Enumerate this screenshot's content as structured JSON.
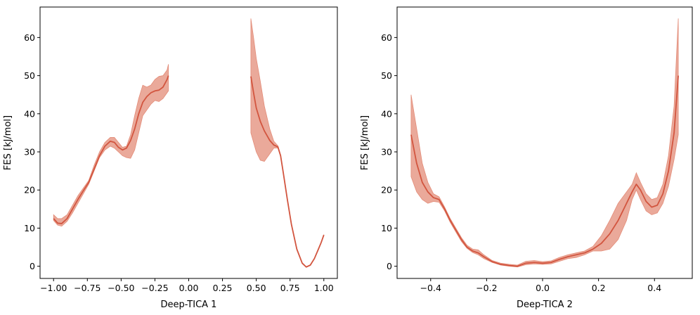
{
  "colors": {
    "line": "#d2553f",
    "band": "#e38c78"
  },
  "chart_data": [
    {
      "type": "line",
      "xlabel": "Deep-TICA 1",
      "ylabel": "FES [kJ/mol]",
      "xlim": [
        -1.1,
        1.1
      ],
      "ylim": [
        -3.2,
        68
      ],
      "xticks": [
        -1.0,
        -0.75,
        -0.5,
        -0.25,
        0.0,
        0.25,
        0.5,
        0.75,
        1.0
      ],
      "xtick_labels": [
        "−1.00",
        "−0.75",
        "−0.50",
        "−0.25",
        "0.00",
        "0.25",
        "0.50",
        "0.75",
        "1.00"
      ],
      "yticks": [
        0,
        10,
        20,
        30,
        40,
        50,
        60
      ],
      "ytick_labels": [
        "0",
        "10",
        "20",
        "30",
        "40",
        "50",
        "60"
      ],
      "grid": false,
      "segments": [
        {
          "x": [
            -1.0,
            -0.97,
            -0.94,
            -0.9,
            -0.86,
            -0.82,
            -0.78,
            -0.74,
            -0.7,
            -0.66,
            -0.62,
            -0.58,
            -0.55,
            -0.52,
            -0.49,
            -0.46,
            -0.43,
            -0.4,
            -0.37,
            -0.34,
            -0.31,
            -0.28,
            -0.25,
            -0.22,
            -0.19,
            -0.16,
            -0.15
          ],
          "y": [
            12.5,
            11.3,
            11.2,
            12.5,
            15.0,
            17.5,
            19.8,
            22.0,
            25.5,
            29.0,
            31.5,
            32.8,
            32.5,
            31.2,
            30.5,
            31.0,
            33.0,
            36.0,
            40.0,
            43.0,
            44.5,
            45.5,
            46.0,
            46.2,
            47.0,
            49.0,
            50.0
          ],
          "lower": [
            12.0,
            10.8,
            10.5,
            11.8,
            14.0,
            16.5,
            19.0,
            21.5,
            25.0,
            28.5,
            30.5,
            31.5,
            31.0,
            30.0,
            29.0,
            28.5,
            28.3,
            30.5,
            35.0,
            39.5,
            41.0,
            42.5,
            43.5,
            43.2,
            44.0,
            45.5,
            46.0
          ],
          "upper": [
            13.5,
            12.5,
            12.5,
            13.5,
            16.0,
            18.5,
            20.5,
            22.5,
            26.5,
            30.0,
            32.5,
            33.8,
            33.8,
            32.5,
            31.2,
            31.5,
            34.5,
            39.5,
            44.0,
            47.5,
            47.0,
            47.5,
            49.0,
            49.8,
            50.0,
            51.5,
            53.0
          ]
        },
        {
          "x": [
            0.46,
            0.48,
            0.5,
            0.53,
            0.56,
            0.6,
            0.63,
            0.66,
            0.68,
            0.7,
            0.73,
            0.76,
            0.8,
            0.84,
            0.87,
            0.9,
            0.93,
            0.96,
            0.98,
            1.0
          ],
          "y": [
            49.8,
            45.5,
            41.5,
            38.0,
            35.5,
            33.0,
            31.8,
            31.3,
            29.0,
            24.5,
            17.5,
            11.0,
            4.5,
            0.8,
            -0.2,
            0.3,
            2.0,
            4.5,
            6.2,
            8.2
          ],
          "lower": [
            35.0,
            32.5,
            30.0,
            27.8,
            27.5,
            29.5,
            31.0,
            31.0,
            28.8,
            24.3,
            17.3,
            10.8,
            4.3,
            0.7,
            -0.3,
            0.2,
            1.9,
            4.4,
            6.1,
            8.1
          ],
          "upper": [
            65.0,
            60.0,
            54.5,
            48.5,
            42.0,
            36.0,
            32.8,
            31.6,
            29.2,
            24.7,
            17.7,
            11.2,
            4.7,
            0.9,
            -0.1,
            0.4,
            2.1,
            4.6,
            6.3,
            8.3
          ]
        }
      ]
    },
    {
      "type": "line",
      "xlabel": "Deep-TICA 2",
      "ylabel": "FES [kJ/mol]",
      "xlim": [
        -0.52,
        0.535
      ],
      "ylim": [
        -3.2,
        68
      ],
      "xticks": [
        -0.4,
        -0.2,
        0.0,
        0.2,
        0.4
      ],
      "xtick_labels": [
        "−0.4",
        "−0.2",
        "0.0",
        "0.2",
        "0.4"
      ],
      "yticks": [
        0,
        10,
        20,
        30,
        40,
        50,
        60
      ],
      "ytick_labels": [
        "0",
        "10",
        "20",
        "30",
        "40",
        "50",
        "60"
      ],
      "grid": false,
      "segments": [
        {
          "x": [
            -0.47,
            -0.45,
            -0.43,
            -0.41,
            -0.39,
            -0.37,
            -0.35,
            -0.33,
            -0.31,
            -0.29,
            -0.27,
            -0.25,
            -0.23,
            -0.21,
            -0.18,
            -0.15,
            -0.12,
            -0.09,
            -0.06,
            -0.03,
            0.0,
            0.03,
            0.06,
            0.09,
            0.12,
            0.15,
            0.18,
            0.21,
            0.24,
            0.27,
            0.3,
            0.32,
            0.335,
            0.35,
            0.37,
            0.39,
            0.41,
            0.43,
            0.45,
            0.47,
            0.485
          ],
          "y": [
            34.5,
            27.0,
            22.0,
            19.5,
            18.0,
            17.5,
            15.0,
            12.0,
            9.5,
            7.0,
            5.0,
            4.0,
            3.5,
            2.5,
            1.2,
            0.5,
            0.2,
            0.0,
            0.8,
            1.0,
            0.8,
            1.0,
            1.8,
            2.5,
            3.0,
            3.5,
            4.5,
            6.0,
            8.5,
            12.0,
            16.5,
            19.5,
            21.5,
            20.0,
            17.0,
            15.5,
            16.0,
            19.0,
            25.0,
            35.0,
            50.0
          ],
          "lower": [
            23.5,
            19.5,
            17.5,
            16.5,
            17.0,
            16.8,
            14.5,
            11.5,
            9.0,
            6.5,
            4.7,
            3.6,
            3.0,
            2.0,
            1.0,
            0.3,
            0.0,
            -0.2,
            0.4,
            0.6,
            0.5,
            0.6,
            1.3,
            2.0,
            2.3,
            3.0,
            4.0,
            4.0,
            4.5,
            7.0,
            12.0,
            17.5,
            20.0,
            17.5,
            14.5,
            13.5,
            14.0,
            16.5,
            21.0,
            28.0,
            34.5
          ],
          "upper": [
            45.0,
            36.0,
            27.0,
            22.0,
            19.0,
            18.2,
            15.5,
            12.5,
            10.0,
            7.5,
            5.5,
            4.5,
            4.3,
            3.0,
            1.5,
            0.8,
            0.5,
            0.3,
            1.3,
            1.5,
            1.2,
            1.4,
            2.3,
            3.0,
            3.5,
            4.0,
            5.2,
            8.0,
            12.0,
            16.5,
            19.5,
            21.5,
            24.5,
            22.0,
            19.0,
            17.5,
            18.0,
            21.5,
            29.0,
            42.0,
            65.0
          ]
        }
      ]
    }
  ]
}
